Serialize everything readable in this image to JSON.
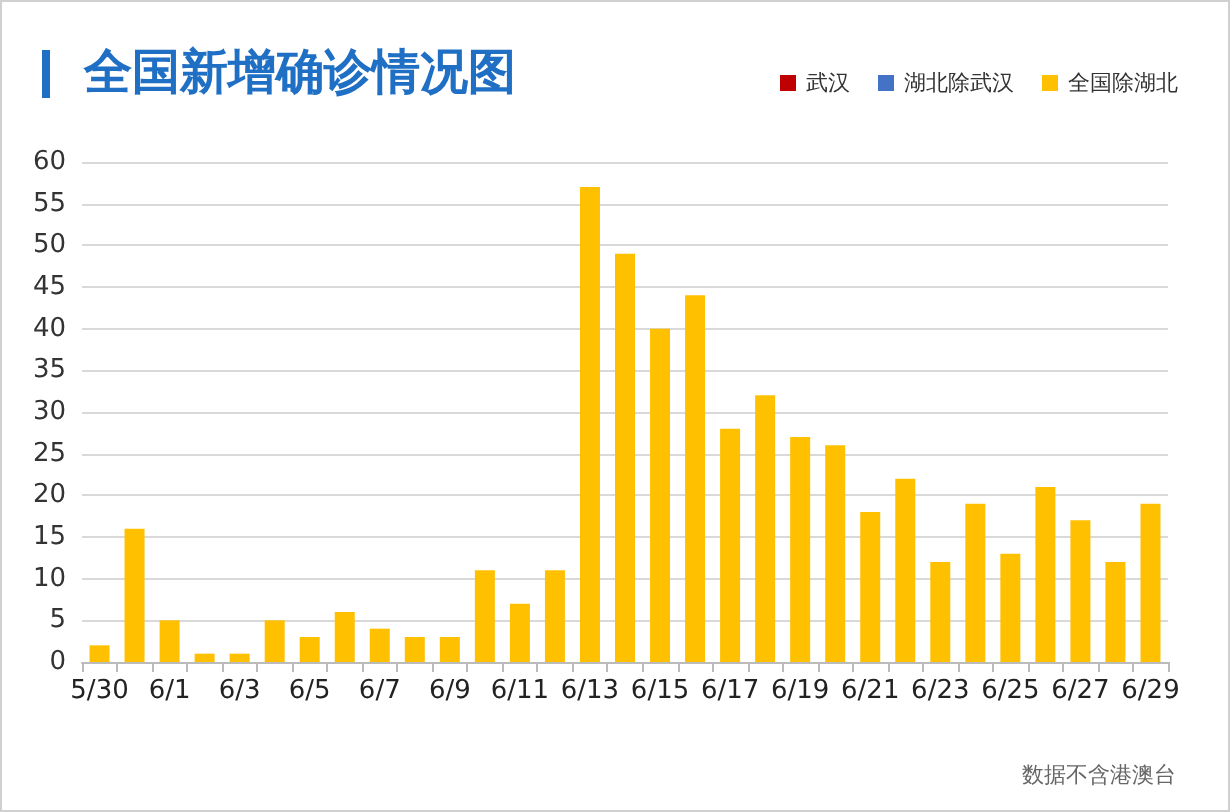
{
  "chart_data": {
    "type": "bar",
    "title": "全国新增确诊情况图",
    "stacked": true,
    "categories": [
      "5/30",
      null,
      "6/1",
      null,
      "6/3",
      null,
      "6/5",
      null,
      "6/7",
      null,
      "6/9",
      null,
      "6/11",
      null,
      "6/13",
      null,
      "6/15",
      null,
      "6/17",
      null,
      "6/19",
      null,
      "6/21",
      null,
      "6/23",
      null,
      "6/25",
      null,
      "6/27",
      null,
      "6/29"
    ],
    "series": [
      {
        "name": "武汉",
        "color": "#c00000",
        "values": [
          0,
          0,
          0,
          0,
          0,
          0,
          0,
          0,
          0,
          0,
          0,
          0,
          0,
          0,
          0,
          0,
          0,
          0,
          0,
          0,
          0,
          0,
          0,
          0,
          0,
          0,
          0,
          0,
          0,
          0,
          0
        ]
      },
      {
        "name": "湖北除武汉",
        "color": "#4472c4",
        "values": [
          0,
          0,
          0,
          0,
          0,
          0,
          0,
          0,
          0,
          0,
          0,
          0,
          0,
          0,
          0,
          0,
          0,
          0,
          0,
          0,
          0,
          0,
          0,
          0,
          0,
          0,
          0,
          0,
          0,
          0,
          0
        ]
      },
      {
        "name": "全国除湖北",
        "color": "#ffc000",
        "values": [
          2,
          16,
          5,
          1,
          1,
          5,
          3,
          6,
          4,
          3,
          3,
          11,
          7,
          11,
          57,
          49,
          40,
          44,
          28,
          32,
          27,
          26,
          18,
          22,
          12,
          19,
          13,
          21,
          17,
          12,
          19
        ]
      }
    ],
    "ylim": [
      0,
      60
    ],
    "yticks": [
      0,
      5,
      10,
      15,
      20,
      25,
      30,
      35,
      40,
      45,
      50,
      55,
      60
    ],
    "grid": "y",
    "legend": "top right",
    "annotations": [
      "数据不含港澳台"
    ]
  }
}
